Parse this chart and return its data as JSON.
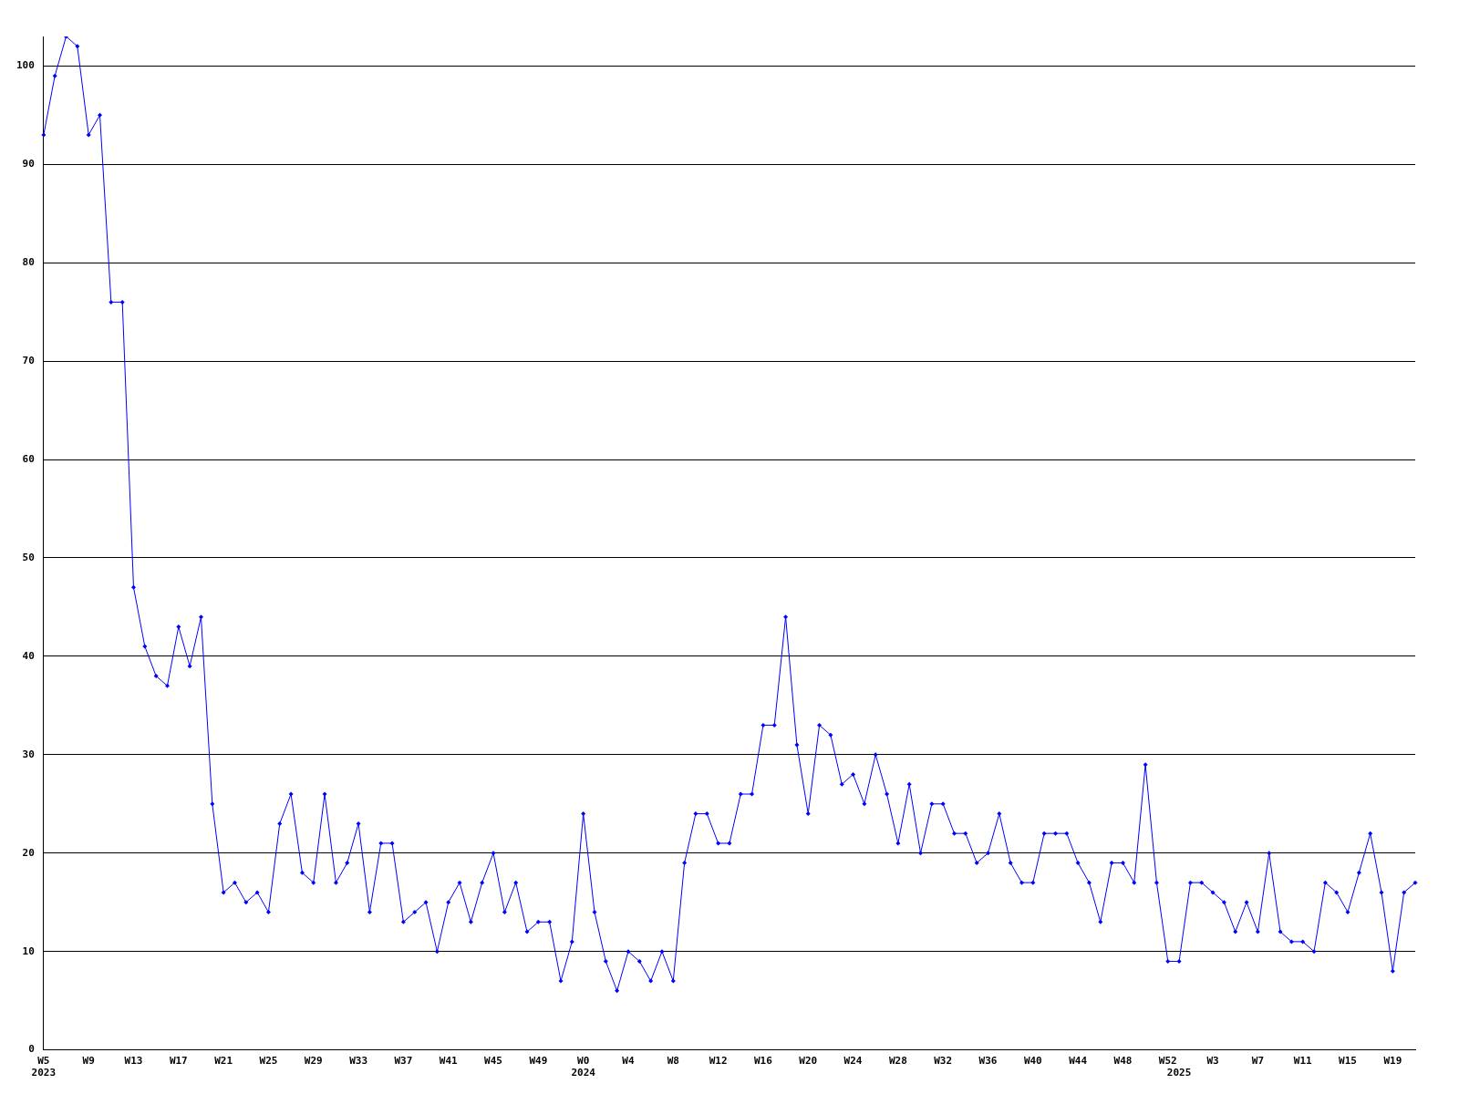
{
  "chart_data": {
    "type": "line",
    "categories": [
      "W5\n2023",
      null,
      null,
      null,
      "W9",
      null,
      null,
      null,
      "W13",
      null,
      null,
      null,
      "W17",
      null,
      null,
      null,
      "W21",
      null,
      null,
      null,
      "W25",
      null,
      null,
      null,
      "W29",
      null,
      null,
      null,
      "W33",
      null,
      null,
      null,
      "W37",
      null,
      null,
      null,
      "W41",
      null,
      null,
      null,
      "W45",
      null,
      null,
      null,
      "W49",
      null,
      null,
      null,
      "W0\n2024",
      null,
      null,
      null,
      "W4",
      null,
      null,
      null,
      "W8",
      null,
      null,
      null,
      "W12",
      null,
      null,
      null,
      "W16",
      null,
      null,
      null,
      "W20",
      null,
      null,
      null,
      "W24",
      null,
      null,
      null,
      "W28",
      null,
      null,
      null,
      "W32",
      null,
      null,
      null,
      "W36",
      null,
      null,
      null,
      "W40",
      null,
      null,
      null,
      "W44",
      null,
      null,
      null,
      "W48",
      null,
      null,
      null,
      "W52",
      "\n2025",
      null,
      null,
      "W3",
      null,
      null,
      null,
      "W7",
      null,
      null,
      null,
      "W11",
      null,
      null,
      null,
      "W15",
      null,
      null,
      null,
      "W19",
      null,
      null
    ],
    "series": [
      {
        "color": "#0000ff",
        "values": [
          93,
          99,
          103,
          102,
          93,
          95,
          76,
          76,
          47,
          41,
          38,
          37,
          43,
          39,
          44,
          25,
          16,
          17,
          15,
          16,
          14,
          23,
          26,
          18,
          17,
          26,
          17,
          19,
          23,
          14,
          21,
          21,
          13,
          14,
          15,
          10,
          15,
          17,
          13,
          17,
          20,
          14,
          17,
          12,
          13,
          13,
          7,
          11,
          24,
          14,
          9,
          6,
          10,
          9,
          7,
          10,
          7,
          19,
          24,
          24,
          21,
          21,
          26,
          26,
          33,
          33,
          44,
          31,
          24,
          33,
          32,
          27,
          28,
          25,
          30,
          26,
          21,
          27,
          20,
          25,
          25,
          22,
          22,
          19,
          20,
          24,
          19,
          17,
          17,
          22,
          22,
          22,
          19,
          17,
          13,
          19,
          19,
          17,
          29,
          17,
          9,
          9,
          17,
          17,
          16,
          15,
          12,
          15,
          12,
          20,
          12,
          11,
          11,
          10,
          17,
          16,
          14,
          18,
          22,
          16,
          8,
          16,
          17
        ]
      }
    ],
    "ylim": [
      0,
      103
    ],
    "yticks": [
      0,
      10,
      20,
      30,
      40,
      50,
      60,
      70,
      80,
      90,
      100
    ],
    "grid": "y",
    "legend": false,
    "marker": "diamond",
    "line_style": "solid"
  }
}
